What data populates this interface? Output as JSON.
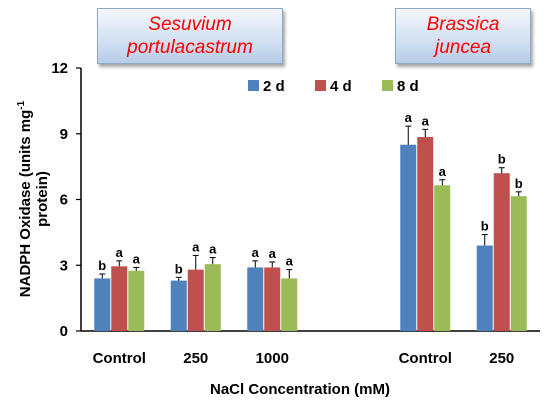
{
  "species_labels": {
    "left_line1": "Sesuvium",
    "left_line2": "portulacastrum",
    "right_line1": "Brassica",
    "right_line2": "juncea"
  },
  "chart_data": {
    "type": "bar",
    "xlabel": "NaCl Concentration (mM)",
    "ylabel_line1": "NADPH Oxidase (units mg",
    "ylabel_superscript": "-1",
    "ylabel_line2": "protein)",
    "ylim": [
      0,
      12
    ],
    "yticks": [
      "0",
      "3",
      "6",
      "9",
      "12"
    ],
    "legend_position": "top",
    "groups": [
      {
        "species": "Sesuvium portulacastrum",
        "label": "Control",
        "values": [
          2.4,
          2.95,
          2.75
        ],
        "errors": [
          0.2,
          0.25,
          0.15
        ],
        "letters": [
          "b",
          "a",
          "a"
        ]
      },
      {
        "species": "Sesuvium portulacastrum",
        "label": "250",
        "values": [
          2.3,
          2.8,
          3.05
        ],
        "errors": [
          0.15,
          0.65,
          0.3
        ],
        "letters": [
          "b",
          "a",
          "a"
        ]
      },
      {
        "species": "Sesuvium portulacastrum",
        "label": "1000",
        "values": [
          2.9,
          2.9,
          2.4
        ],
        "errors": [
          0.3,
          0.25,
          0.4
        ],
        "letters": [
          "a",
          "a",
          "a"
        ]
      },
      {
        "species": "Brassica juncea",
        "label": "Control",
        "values": [
          8.5,
          8.85,
          6.65
        ],
        "errors": [
          0.85,
          0.35,
          0.25
        ],
        "letters": [
          "a",
          "a",
          "a"
        ]
      },
      {
        "species": "Brassica juncea",
        "label": "250",
        "values": [
          3.9,
          7.2,
          6.15
        ],
        "errors": [
          0.5,
          0.25,
          0.2
        ],
        "letters": [
          "b",
          "b",
          "b"
        ]
      }
    ],
    "series": [
      {
        "name": "2 d",
        "color": "#4f81bd"
      },
      {
        "name": "4 d",
        "color": "#c0504d"
      },
      {
        "name": "8 d",
        "color": "#9bbb59"
      }
    ]
  }
}
